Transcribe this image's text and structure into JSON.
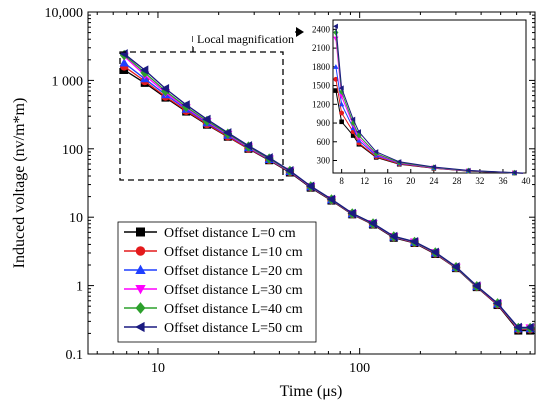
{
  "chart_data": [
    {
      "type": "line",
      "xlabel": "Time (μs)",
      "ylabel": "Induced voltage (nv/m*m)",
      "xscale": "log",
      "yscale": "log",
      "xlim": [
        4.5,
        740
      ],
      "ylim": [
        0.1,
        10000
      ],
      "xticks": [
        10,
        100
      ],
      "xtick_labels": [
        "10",
        "100"
      ],
      "yticks": [
        0.1,
        1,
        10,
        100,
        1000,
        10000
      ],
      "ytick_labels": [
        "0.1",
        "1",
        "10",
        "100",
        "1 000",
        "10,000"
      ],
      "grid": false,
      "legend_position": "lower-left",
      "annotation": "Local magnification",
      "x": [
        6.8,
        8.6,
        10.9,
        13.8,
        17.5,
        22.2,
        28.1,
        35.6,
        45.1,
        57.2,
        72.5,
        91.9,
        116.5,
        147.6,
        187.1,
        237.1,
        300.5,
        380.8,
        482.6,
        611.6,
        700
      ],
      "series": [
        {
          "name": "Offset distance L=0 cm",
          "color": "#000000",
          "marker": "square",
          "values": [
            1420,
            920,
            560,
            350,
            225,
            150,
            100,
            68,
            45,
            27,
            17.5,
            11,
            7.8,
            5.0,
            4.2,
            2.9,
            1.8,
            0.95,
            0.52,
            0.22,
            0.22
          ]
        },
        {
          "name": "Offset distance L=10 cm",
          "color": "#e41a1c",
          "marker": "circle",
          "values": [
            1600,
            980,
            580,
            360,
            230,
            152,
            101,
            69,
            46,
            27.5,
            17.8,
            11.1,
            7.9,
            5.1,
            4.25,
            2.95,
            1.82,
            0.96,
            0.53,
            0.23,
            0.23
          ]
        },
        {
          "name": "Offset distance L=20 cm",
          "color": "#1f3fff",
          "marker": "triangle-up",
          "values": [
            1800,
            1060,
            620,
            380,
            240,
            158,
            104,
            70,
            46.5,
            27.8,
            18,
            11.2,
            8.0,
            5.15,
            4.3,
            3.0,
            1.84,
            0.97,
            0.54,
            0.235,
            0.235
          ]
        },
        {
          "name": "Offset distance L=30 cm",
          "color": "#ff00ff",
          "marker": "triangle-down",
          "values": [
            2250,
            1200,
            660,
            395,
            248,
            162,
            106,
            71,
            47,
            28,
            18.1,
            11.3,
            8.05,
            5.2,
            4.32,
            3.02,
            1.85,
            0.98,
            0.54,
            0.24,
            0.24
          ]
        },
        {
          "name": "Offset distance L=40 cm",
          "color": "#2ca02c",
          "marker": "diamond",
          "values": [
            2350,
            1300,
            700,
            410,
            255,
            166,
            108,
            72,
            47.5,
            28.2,
            18.2,
            11.35,
            8.1,
            5.22,
            4.35,
            3.05,
            1.86,
            0.98,
            0.55,
            0.24,
            0.24
          ]
        },
        {
          "name": "Offset distance L=50 cm",
          "color": "#1a1a80",
          "marker": "triangle-left",
          "values": [
            2450,
            1420,
            760,
            440,
            270,
            172,
            111,
            74,
            48,
            28.5,
            18.3,
            11.4,
            8.15,
            5.25,
            4.4,
            3.08,
            1.88,
            0.99,
            0.55,
            0.245,
            0.245
          ]
        }
      ]
    },
    {
      "type": "line",
      "xlim": [
        6.5,
        40
      ],
      "ylim": [
        100,
        2550
      ],
      "xticks": [
        8,
        12,
        16,
        20,
        24,
        28,
        32,
        36,
        40
      ],
      "xtick_labels": [
        "8",
        "12",
        "16",
        "20",
        "24",
        "28",
        "32",
        "36",
        "40"
      ],
      "yticks": [
        300,
        600,
        900,
        1200,
        1500,
        1800,
        2100,
        2400
      ],
      "ytick_labels": [
        "300",
        "600",
        "900",
        "1200",
        "1500",
        "1800",
        "2100",
        "2400"
      ],
      "grid": false,
      "x": [
        7,
        8,
        10,
        11,
        14,
        18,
        24,
        30,
        38,
        39.5
      ],
      "series": [
        {
          "color": "#000000",
          "marker": "square",
          "values": [
            1420,
            920,
            700,
            560,
            350,
            240,
            175,
            130,
            100,
            95
          ]
        },
        {
          "color": "#e41a1c",
          "marker": "circle",
          "values": [
            1600,
            1060,
            760,
            580,
            360,
            245,
            178,
            132,
            101,
            96
          ]
        },
        {
          "color": "#1f3fff",
          "marker": "triangle-up",
          "values": [
            1800,
            1200,
            820,
            620,
            380,
            255,
            182,
            134,
            102,
            97
          ]
        },
        {
          "color": "#ff00ff",
          "marker": "triangle-down",
          "values": [
            2250,
            1330,
            870,
            660,
            395,
            262,
            186,
            136,
            103,
            98
          ]
        },
        {
          "color": "#2ca02c",
          "marker": "diamond",
          "values": [
            2350,
            1400,
            900,
            700,
            410,
            268,
            190,
            138,
            104,
            99
          ]
        },
        {
          "color": "#1a1a80",
          "marker": "triangle-left",
          "values": [
            2450,
            1460,
            960,
            760,
            440,
            280,
            196,
            141,
            106,
            100
          ]
        }
      ]
    }
  ]
}
